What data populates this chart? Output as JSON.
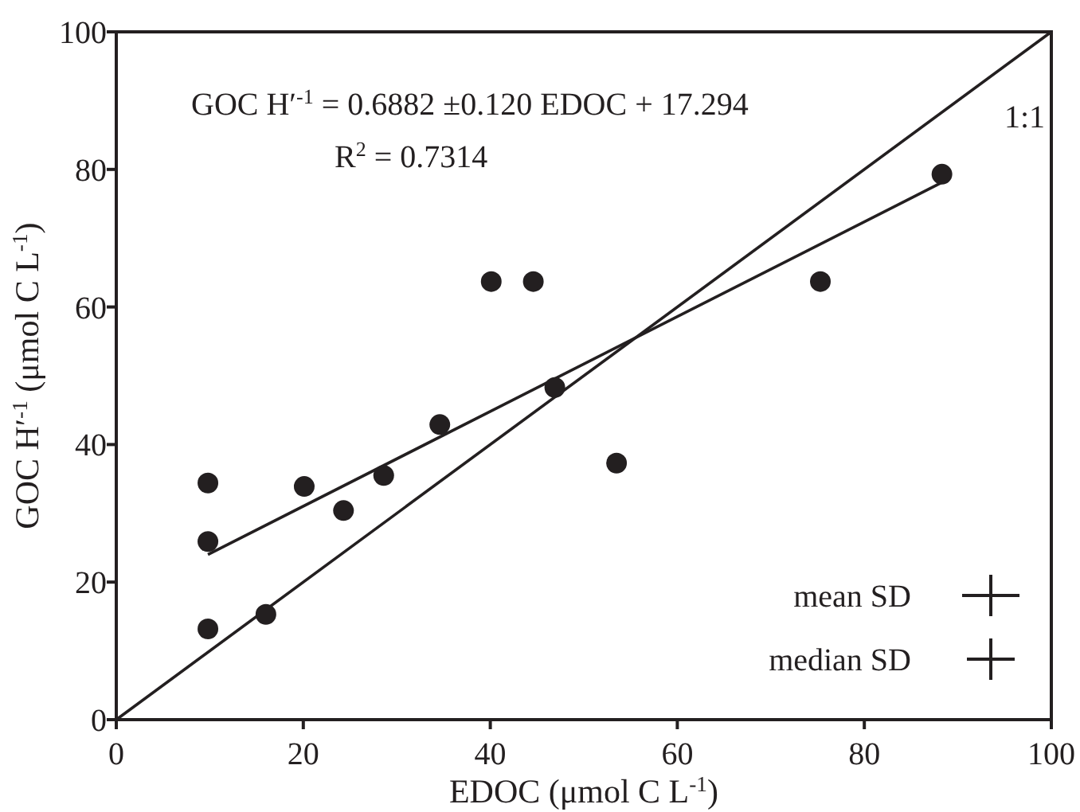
{
  "chart_data": {
    "type": "scatter",
    "xlabel": "EDOC (μmol C L$^{-1}$)",
    "ylabel": "GOC H′$^{-1}$ (μmol C L$^{-1}$)",
    "xlim": [
      0,
      100
    ],
    "ylim": [
      0,
      100
    ],
    "xticks": [
      0,
      20,
      40,
      60,
      80,
      100
    ],
    "yticks": [
      0,
      20,
      40,
      60,
      80,
      100
    ],
    "grid": false,
    "series": [
      {
        "color": "#231f20",
        "marker": "circle",
        "x": [
          9.8,
          9.8,
          9.8,
          16.0,
          20.1,
          24.3,
          28.6,
          34.6,
          40.1,
          44.6,
          46.9,
          53.5,
          75.3,
          88.3
        ],
        "values": [
          13.2,
          25.9,
          34.4,
          15.3,
          33.9,
          30.4,
          35.5,
          42.9,
          63.7,
          63.7,
          48.3,
          37.3,
          63.7,
          79.3
        ]
      },
      {
        "type": "line",
        "color": "#231f20",
        "x": [
          9.8,
          88.3
        ],
        "values": [
          24.0,
          78.1
        ],
        "marker": "none",
        "line_style": "solid"
      },
      {
        "type": "line",
        "color": "#231f20",
        "x": [
          0,
          100
        ],
        "values": [
          0,
          100
        ],
        "marker": "none",
        "line_style": "solid"
      }
    ],
    "annotations": [
      "GOC H′$^{-1}$ = 0.6882 ±0.120 EDOC + 17.294",
      "R$^{2}$ = 0.7314",
      "1:1",
      "mean SD",
      "median SD"
    ]
  }
}
